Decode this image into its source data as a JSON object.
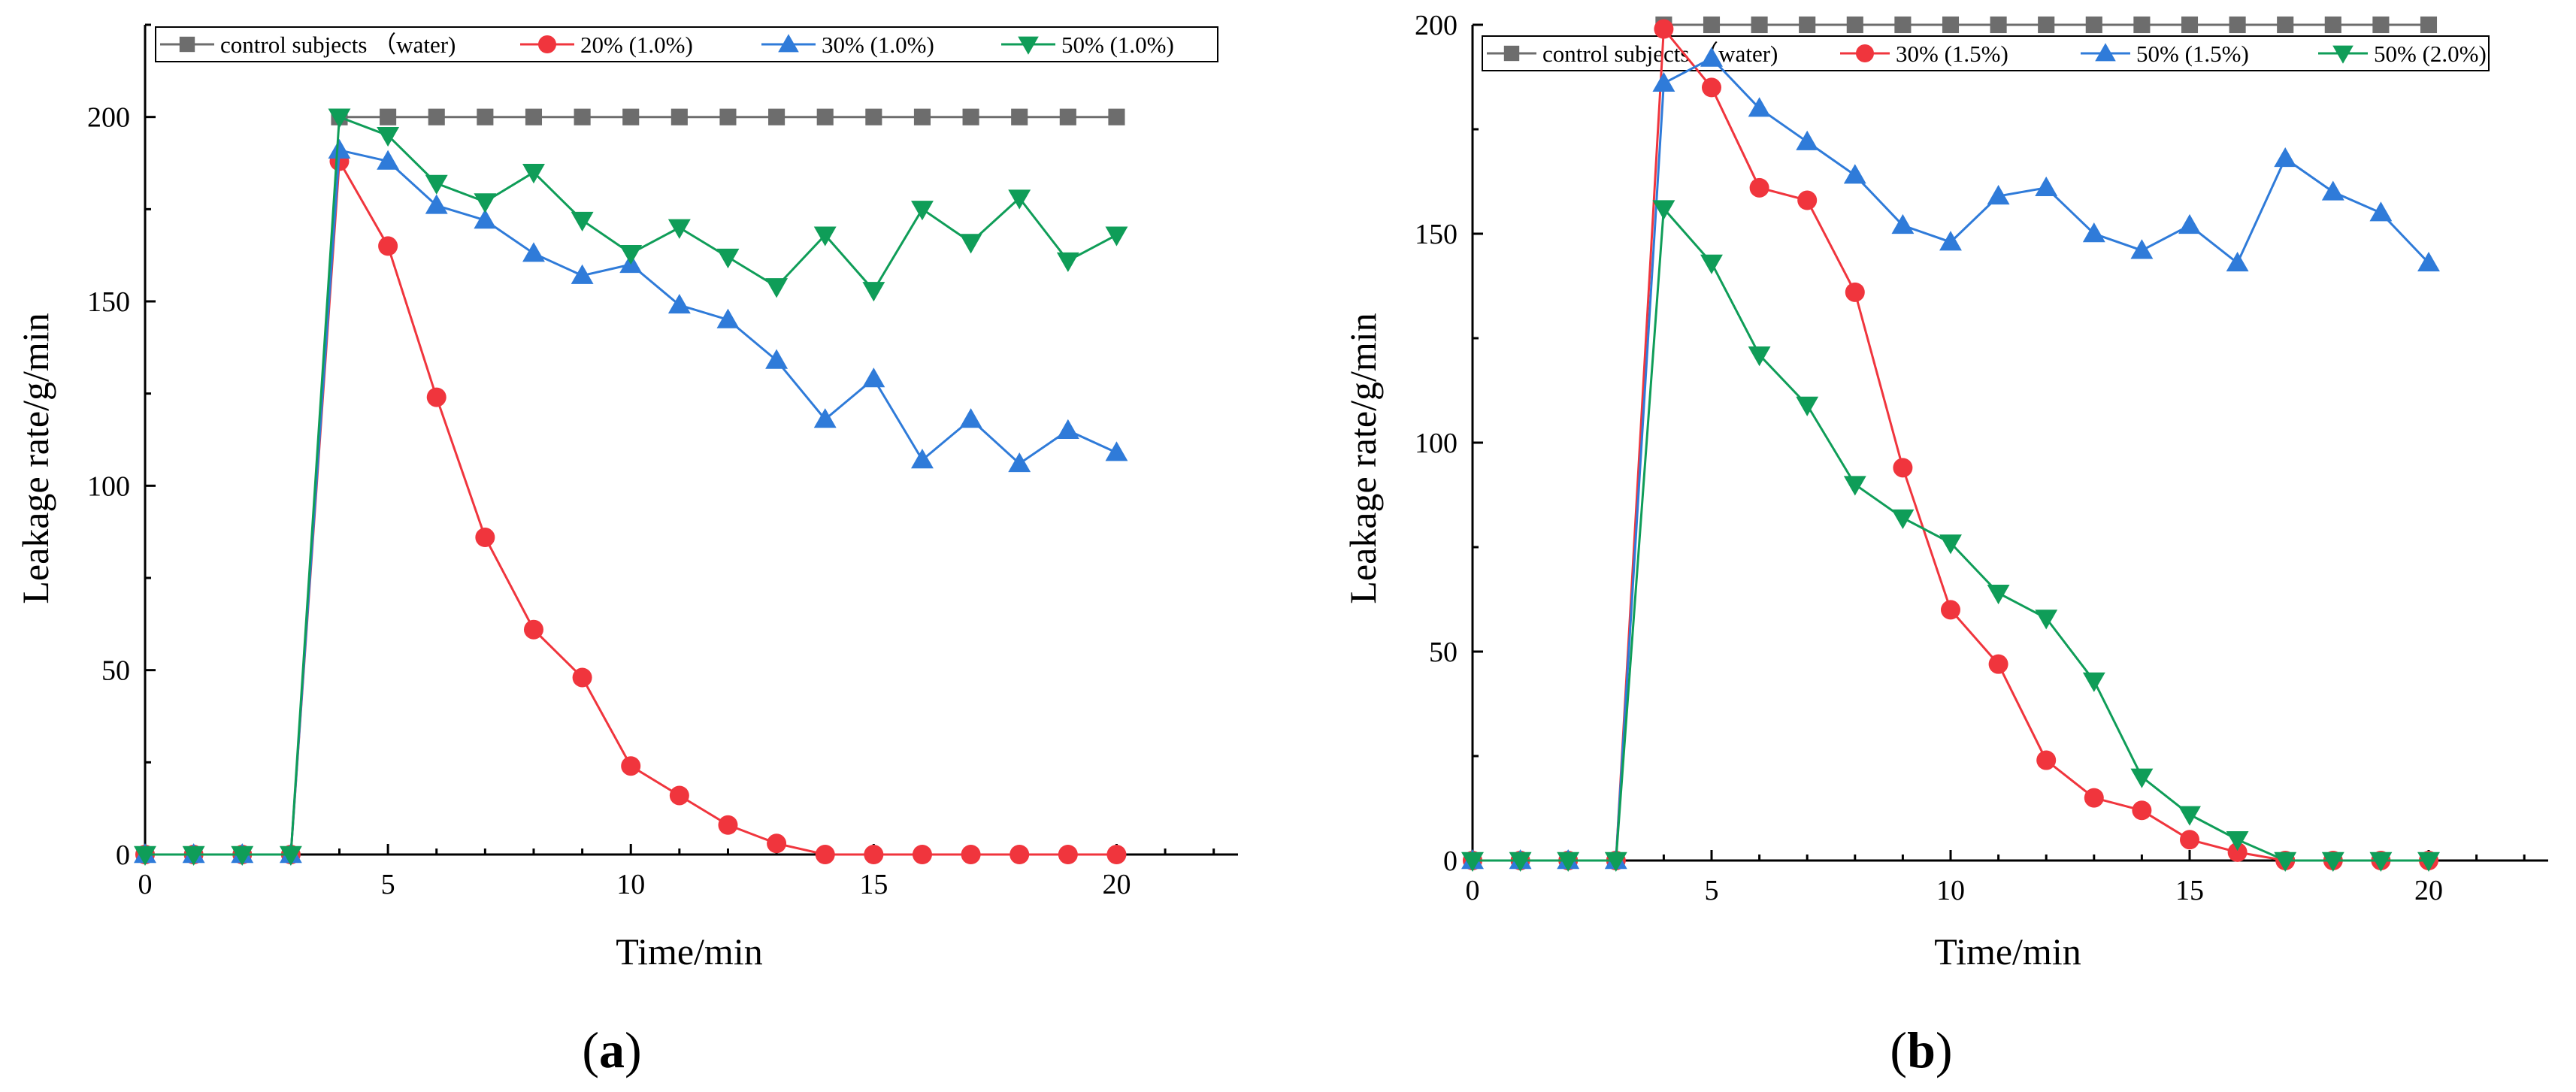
{
  "figure": {
    "panels": [
      {
        "caption": {
          "open": "(",
          "letter": "a",
          "close": ")"
        },
        "xlabel": "Time/min",
        "ylabel": "Leakage rate/g/min"
      },
      {
        "caption": {
          "open": "(",
          "letter": "b",
          "close": ")"
        },
        "xlabel": "Time/min",
        "ylabel": "Leakage rate/g/min"
      }
    ]
  },
  "chart_data": [
    {
      "type": "line",
      "title": "",
      "panel_label": "(a)",
      "xlabel": "Time/min",
      "ylabel": "Leakage rate/g/min",
      "xlim": [
        0,
        22.5
      ],
      "ylim": [
        0,
        225
      ],
      "xticks": [
        0,
        5,
        10,
        15,
        20
      ],
      "yticks": [
        0,
        50,
        100,
        150,
        200
      ],
      "grid": false,
      "legend_position": "top",
      "series": [
        {
          "name": "control subjects （water)",
          "color": "#6d6d6d",
          "marker": "square",
          "x": [
            4,
            5,
            6,
            7,
            8,
            9,
            10,
            11,
            12,
            13,
            14,
            15,
            16,
            17,
            18,
            19,
            20
          ],
          "values": [
            200,
            200,
            200,
            200,
            200,
            200,
            200,
            200,
            200,
            200,
            200,
            200,
            200,
            200,
            200,
            200,
            200
          ]
        },
        {
          "name": "20% (1.0%)",
          "color": "#f0353d",
          "marker": "circle",
          "x": [
            0,
            1,
            2,
            3,
            4,
            5,
            6,
            7,
            8,
            9,
            10,
            11,
            12,
            13,
            14,
            15,
            16,
            17,
            18,
            19,
            20
          ],
          "values": [
            0,
            0,
            0,
            0,
            188,
            165,
            124,
            86,
            61,
            48,
            24,
            16,
            8,
            3,
            0,
            0,
            0,
            0,
            0,
            0,
            0
          ]
        },
        {
          "name": "30% (1.0%)",
          "color": "#2f7bd9",
          "marker": "triangle-up",
          "x": [
            0,
            1,
            2,
            3,
            4,
            5,
            6,
            7,
            8,
            9,
            10,
            11,
            12,
            13,
            14,
            15,
            16,
            17,
            18,
            19,
            20
          ],
          "values": [
            0,
            0,
            0,
            0,
            191,
            188,
            176,
            172,
            163,
            157,
            160,
            149,
            145,
            134,
            118,
            129,
            107,
            118,
            106,
            115,
            109
          ]
        },
        {
          "name": "50% (1.0%)",
          "color": "#0f9d58",
          "marker": "triangle-down",
          "x": [
            0,
            1,
            2,
            3,
            4,
            5,
            6,
            7,
            8,
            9,
            10,
            11,
            12,
            13,
            14,
            15,
            16,
            17,
            18,
            19,
            20
          ],
          "values": [
            0,
            0,
            0,
            0,
            200,
            195,
            182,
            177,
            185,
            172,
            163,
            170,
            162,
            154,
            168,
            153,
            175,
            166,
            178,
            161,
            168
          ]
        }
      ]
    },
    {
      "type": "line",
      "title": "",
      "panel_label": "(b)",
      "xlabel": "Time/min",
      "ylabel": "Leakage rate/g/min",
      "xlim": [
        0,
        22.5
      ],
      "ylim": [
        0,
        200
      ],
      "xticks": [
        0,
        5,
        10,
        15,
        20
      ],
      "yticks": [
        0,
        50,
        100,
        150,
        200
      ],
      "grid": false,
      "legend_position": "top",
      "series": [
        {
          "name": "control subjects （water)",
          "color": "#6d6d6d",
          "marker": "square",
          "x": [
            4,
            5,
            6,
            7,
            8,
            9,
            10,
            11,
            12,
            13,
            14,
            15,
            16,
            17,
            18,
            19,
            20
          ],
          "values": [
            200,
            200,
            200,
            200,
            200,
            200,
            200,
            200,
            200,
            200,
            200,
            200,
            200,
            200,
            200,
            200,
            200
          ]
        },
        {
          "name": "30% (1.5%)",
          "color": "#f0353d",
          "marker": "circle",
          "x": [
            0,
            1,
            2,
            3,
            4,
            5,
            6,
            7,
            8,
            9,
            10,
            11,
            12,
            13,
            14,
            15,
            16,
            17,
            18,
            19,
            20
          ],
          "values": [
            0,
            0,
            0,
            0,
            199,
            185,
            161,
            158,
            136,
            94,
            60,
            47,
            24,
            15,
            12,
            5,
            2,
            0,
            0,
            0,
            0
          ]
        },
        {
          "name": "50% (1.5%)",
          "color": "#2f7bd9",
          "marker": "triangle-up",
          "x": [
            0,
            1,
            2,
            3,
            4,
            5,
            6,
            7,
            8,
            9,
            10,
            11,
            12,
            13,
            14,
            15,
            16,
            17,
            18,
            19,
            20
          ],
          "values": [
            0,
            0,
            0,
            0,
            186,
            192,
            180,
            172,
            164,
            152,
            148,
            159,
            161,
            150,
            146,
            152,
            143,
            168,
            160,
            155,
            143
          ]
        },
        {
          "name": "50% (2.0%)",
          "color": "#0f9d58",
          "marker": "triangle-down",
          "x": [
            0,
            1,
            2,
            3,
            4,
            5,
            6,
            7,
            8,
            9,
            10,
            11,
            12,
            13,
            14,
            15,
            16,
            17,
            18,
            19,
            20
          ],
          "values": [
            0,
            0,
            0,
            0,
            156,
            143,
            121,
            109,
            90,
            82,
            76,
            64,
            58,
            43,
            20,
            11,
            5,
            0,
            0,
            0,
            0
          ]
        }
      ]
    }
  ]
}
